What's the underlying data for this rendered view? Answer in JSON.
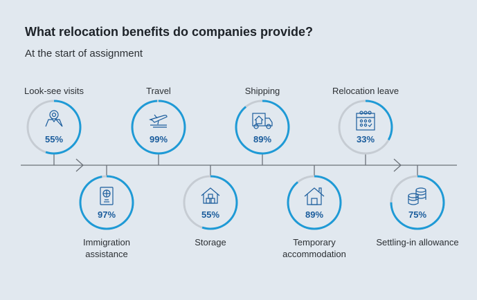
{
  "title": "What relocation benefits do companies provide?",
  "subtitle": "At the start of assignment",
  "colors": {
    "background": "#e1e8ef",
    "ring_fill": "#1e9ad6",
    "ring_track": "#c6ccd3",
    "percent_text": "#1a5c9c",
    "icon": "#1a5c9c",
    "timeline": "#6b7178"
  },
  "benefits": [
    {
      "label": "Look-see visits",
      "percent": 55,
      "percent_label": "55%",
      "icon": "map-pin-icon",
      "position": "top"
    },
    {
      "label": "Immigration assistance",
      "percent": 97,
      "percent_label": "97%",
      "icon": "passport-icon",
      "position": "bottom"
    },
    {
      "label": "Travel",
      "percent": 99,
      "percent_label": "99%",
      "icon": "airplane-icon",
      "position": "top"
    },
    {
      "label": "Storage",
      "percent": 55,
      "percent_label": "55%",
      "icon": "storage-house-icon",
      "position": "bottom"
    },
    {
      "label": "Shipping",
      "percent": 89,
      "percent_label": "89%",
      "icon": "moving-truck-icon",
      "position": "top"
    },
    {
      "label": "Temporary accommodation",
      "percent": 89,
      "percent_label": "89%",
      "icon": "house-icon",
      "position": "bottom"
    },
    {
      "label": "Relocation leave",
      "percent": 33,
      "percent_label": "33%",
      "icon": "calendar-icon",
      "position": "top"
    },
    {
      "label": "Settling-in allowance",
      "percent": 75,
      "percent_label": "75%",
      "icon": "coins-icon",
      "position": "bottom"
    }
  ]
}
